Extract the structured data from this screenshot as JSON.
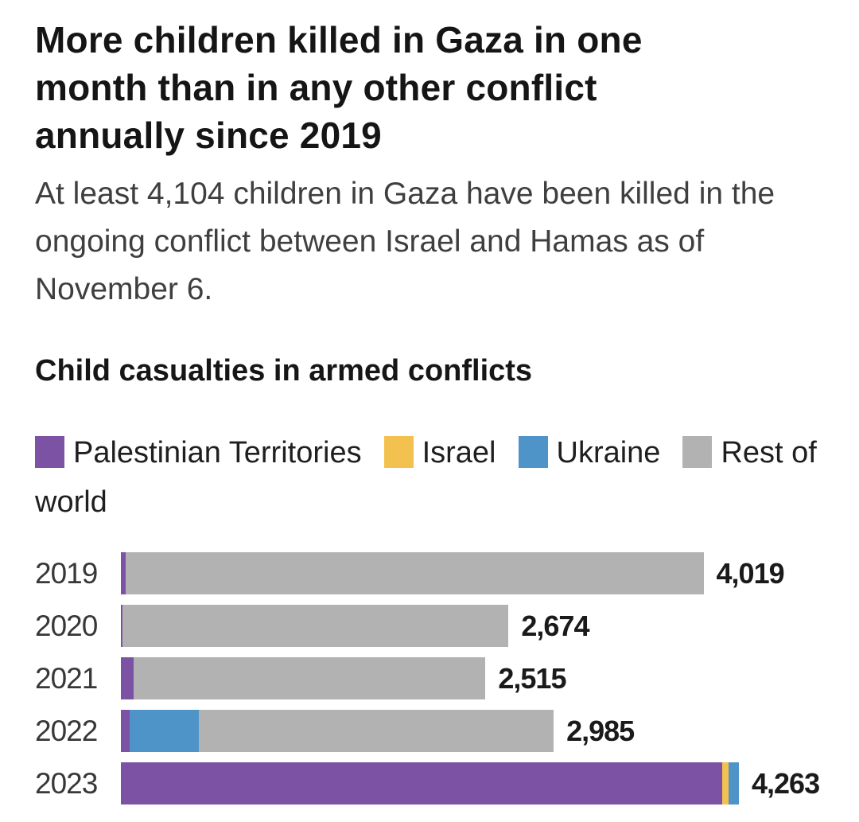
{
  "header": {
    "title": "More children killed in Gaza in one month than in any other conflict annually since 2019",
    "subtitle": "At least 4,104 children in Gaza have been killed in the ongoing conflict between Israel and Hamas as of November 6."
  },
  "chart": {
    "title": "Child casualties in armed conflicts"
  },
  "colors": {
    "palestinian_territories": "#7c52a5",
    "israel": "#f3c150",
    "ukraine": "#4f94c9",
    "rest_of_world": "#b3b2b2",
    "text_dark": "#151515",
    "text_gray": "#3f3f3f"
  },
  "chart_data": {
    "type": "bar",
    "orientation": "horizontal",
    "stacked": true,
    "title": "Child casualties in armed conflicts",
    "categories": [
      "2019",
      "2020",
      "2021",
      "2022",
      "2023"
    ],
    "legend": [
      {
        "label": "Palestinian Territories",
        "color": "#7c52a5"
      },
      {
        "label": "Israel",
        "color": "#f3c150"
      },
      {
        "label": "Ukraine",
        "color": "#4f94c9"
      },
      {
        "label": "Rest of world",
        "color": "#b3b2b2"
      }
    ],
    "series": [
      {
        "name": "Palestinian Territories",
        "color": "#7c52a5",
        "values": [
          35,
          10,
          90,
          60,
          4150
        ]
      },
      {
        "name": "Israel",
        "color": "#f3c150",
        "values": [
          0,
          0,
          0,
          0,
          40
        ]
      },
      {
        "name": "Ukraine",
        "color": "#4f94c9",
        "values": [
          0,
          0,
          0,
          480,
          73
        ]
      },
      {
        "name": "Rest of world",
        "color": "#b3b2b2",
        "values": [
          3984,
          2664,
          2425,
          2445,
          0
        ]
      }
    ],
    "totals": [
      4019,
      2674,
      2515,
      2985,
      4263
    ],
    "total_labels": [
      "4,019",
      "2,674",
      "2,515",
      "2,985",
      "4,263"
    ],
    "xlim": [
      0,
      4850
    ],
    "grid": false,
    "legend_position": "top",
    "value_labels": "end-of-bar"
  }
}
